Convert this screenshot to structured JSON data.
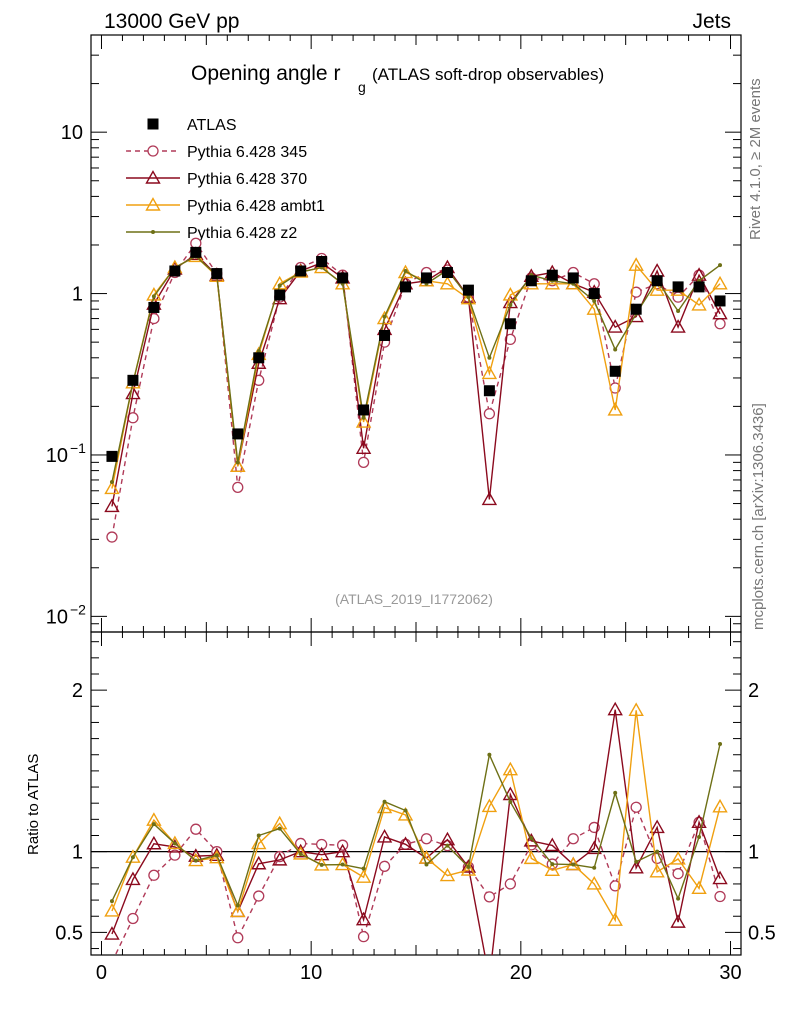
{
  "header": {
    "left": "13000 GeV pp",
    "right": "Jets"
  },
  "side_labels": {
    "rivet": "Rivet 4.1.0, ≥ 2M events",
    "mcplots": "mcplots.cern.ch [arXiv:1306.3436]"
  },
  "annotation": "(ATLAS_2019_I1772062)",
  "chart_data": {
    "type": "line",
    "title": "Opening angle r",
    "title_sub": "g",
    "title_suffix": "(ATLAS soft-drop observables)",
    "xlim": [
      -0.5,
      30.5
    ],
    "x_ticks": [
      "0",
      "10",
      "20",
      "30"
    ],
    "main": {
      "yscale": "log",
      "ylim": [
        0.008,
        40
      ],
      "y_ticks": [
        {
          "base": "10",
          "exp": "−2",
          "value": 0.01
        },
        {
          "base": "10",
          "exp": "−1",
          "value": 0.1
        },
        {
          "base": "1",
          "exp": "",
          "value": 1
        },
        {
          "base": "10",
          "exp": "",
          "value": 10
        }
      ]
    },
    "ratio": {
      "ylabel": "Ratio to ATLAS",
      "ylim": [
        0.36,
        2.36
      ],
      "y_ticks": [
        "0.5",
        "1",
        "2"
      ],
      "reference": 1
    },
    "x": [
      0.5,
      1.5,
      2.5,
      3.5,
      4.5,
      5.5,
      6.5,
      7.5,
      8.5,
      9.5,
      10.5,
      11.5,
      12.5,
      13.5,
      14.5,
      15.5,
      16.5,
      17.5,
      18.5,
      19.5,
      20.5,
      21.5,
      22.5,
      23.5,
      24.5,
      25.5,
      26.5,
      27.5,
      28.5,
      29.5
    ],
    "series": [
      {
        "name": "ATLAS",
        "color": "#000000",
        "marker": "square",
        "dashed": false,
        "values": [
          0.098,
          0.29,
          0.82,
          1.38,
          1.8,
          1.33,
          0.135,
          0.4,
          0.98,
          1.38,
          1.58,
          1.25,
          0.19,
          0.55,
          1.1,
          1.25,
          1.35,
          1.05,
          0.25,
          0.65,
          1.2,
          1.3,
          1.25,
          1.0,
          0.33,
          0.8,
          1.2,
          1.1,
          1.1,
          0.9
        ]
      },
      {
        "name": "Pythia 6.428 345",
        "color": "#b03a58",
        "marker": "circle",
        "dashed": true,
        "values": [
          0.031,
          0.17,
          0.7,
          1.35,
          2.05,
          1.33,
          0.063,
          0.29,
          0.95,
          1.45,
          1.65,
          1.3,
          0.09,
          0.5,
          1.15,
          1.35,
          1.4,
          0.95,
          0.18,
          0.52,
          1.25,
          1.2,
          1.35,
          1.15,
          0.26,
          1.02,
          1.15,
          0.95,
          1.3,
          0.65
        ]
      },
      {
        "name": "Pythia 6.428 370",
        "color": "#8b0a1e",
        "marker": "triangle",
        "dashed": false,
        "values": [
          0.048,
          0.24,
          0.86,
          1.42,
          1.75,
          1.3,
          0.085,
          0.37,
          0.93,
          1.38,
          1.55,
          1.25,
          0.11,
          0.6,
          1.15,
          1.2,
          1.45,
          0.95,
          0.053,
          0.88,
          1.28,
          1.35,
          1.15,
          1.02,
          0.62,
          0.72,
          1.38,
          0.62,
          1.3,
          0.75
        ]
      },
      {
        "name": "Pythia 6.428 ambt1",
        "color": "#f0a010",
        "marker": "triangle",
        "dashed": false,
        "values": [
          0.062,
          0.28,
          0.98,
          1.45,
          1.7,
          1.28,
          0.085,
          0.42,
          1.15,
          1.36,
          1.45,
          1.15,
          0.16,
          0.7,
          1.35,
          1.2,
          1.15,
          0.93,
          0.32,
          0.98,
          1.15,
          1.15,
          1.15,
          0.8,
          0.19,
          1.5,
          1.05,
          1.05,
          0.85,
          1.15
        ]
      },
      {
        "name": "Pythia 6.428 z2",
        "color": "#6e7016",
        "marker": "dot",
        "dashed": false,
        "values": [
          0.068,
          0.28,
          0.96,
          1.45,
          1.7,
          1.3,
          0.09,
          0.44,
          1.12,
          1.36,
          1.45,
          1.15,
          0.17,
          0.72,
          1.38,
          1.15,
          1.4,
          0.95,
          0.4,
          0.85,
          1.3,
          1.2,
          1.15,
          0.9,
          0.45,
          0.75,
          1.2,
          0.78,
          1.2,
          1.5
        ]
      }
    ]
  }
}
